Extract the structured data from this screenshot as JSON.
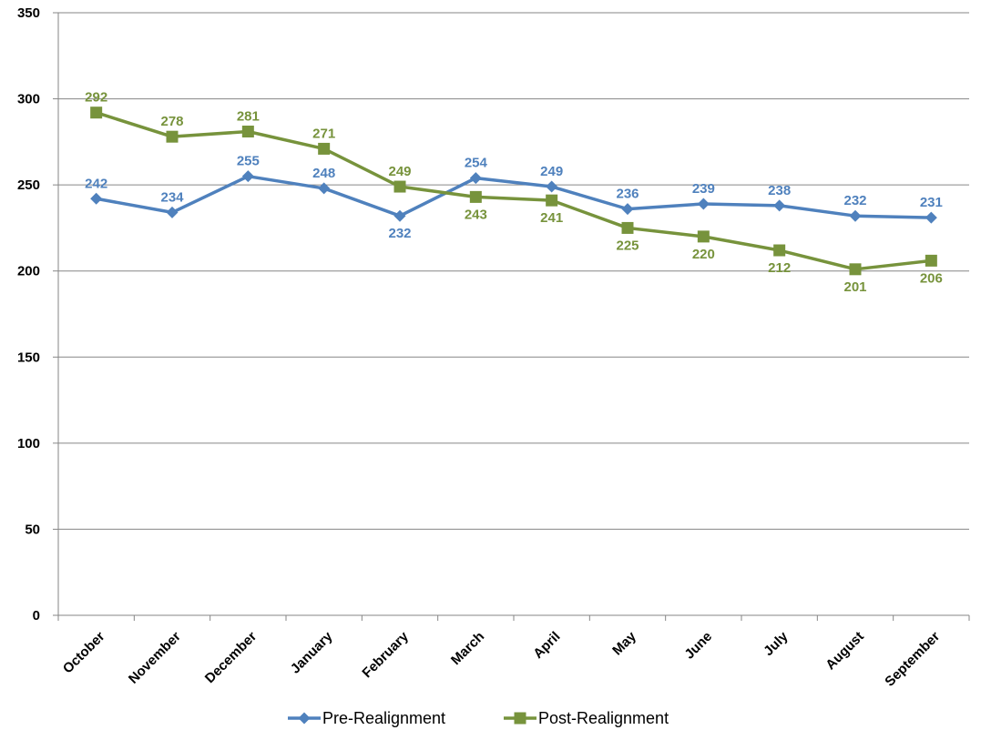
{
  "chart_data": {
    "type": "line",
    "categories": [
      "October",
      "November",
      "December",
      "January",
      "February",
      "March",
      "April",
      "May",
      "June",
      "July",
      "August",
      "September"
    ],
    "ylim": [
      0,
      350
    ],
    "yticks": [
      0,
      50,
      100,
      150,
      200,
      250,
      300,
      350
    ],
    "grid": true,
    "legend_position": "bottom",
    "series": [
      {
        "name": "Pre-Realignment",
        "color": "#4f81bd",
        "marker": "diamond",
        "values": [
          242,
          234,
          255,
          248,
          232,
          254,
          249,
          236,
          239,
          238,
          232,
          231
        ],
        "label_positions": [
          "above",
          "above",
          "above",
          "above",
          "below",
          "above",
          "above",
          "above",
          "above",
          "above",
          "above",
          "above"
        ]
      },
      {
        "name": "Post-Realignment",
        "color": "#77933c",
        "marker": "square",
        "values": [
          292,
          278,
          281,
          271,
          249,
          243,
          241,
          225,
          220,
          212,
          201,
          206
        ],
        "label_positions": [
          "above",
          "above",
          "above",
          "above",
          "above",
          "below",
          "below",
          "below",
          "below",
          "below",
          "below",
          "below"
        ]
      }
    ]
  }
}
